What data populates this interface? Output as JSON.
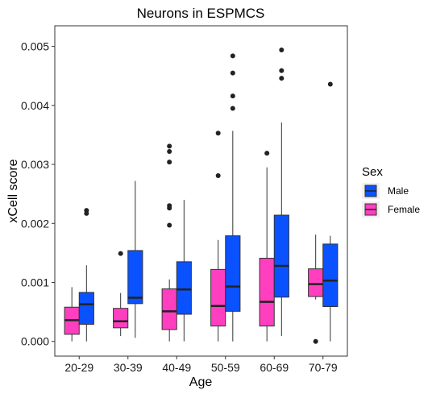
{
  "chart_data": {
    "type": "boxplot",
    "title": "Neurons in ESPMCS",
    "xlabel": "Age",
    "ylabel": "xCell score",
    "categories": [
      "20-29",
      "30-39",
      "40-49",
      "50-59",
      "60-69",
      "70-79"
    ],
    "ylim": [
      -0.00025,
      0.00535
    ],
    "yticks": [
      0,
      0.001,
      0.002,
      0.003,
      0.004,
      0.005
    ],
    "ytick_labels": [
      "0.000",
      "0.001",
      "0.002",
      "0.003",
      "0.004",
      "0.005"
    ],
    "legend": {
      "title": "Sex",
      "position": "right"
    },
    "series": [
      {
        "name": "Female",
        "color": "#ff3fc0",
        "boxes": [
          {
            "category": "20-29",
            "lower_whisker": 0.0,
            "q1": 0.00012,
            "median": 0.00036,
            "q3": 0.00058,
            "upper_whisker": 0.00092,
            "outliers": []
          },
          {
            "category": "30-39",
            "lower_whisker": 9e-05,
            "q1": 0.00023,
            "median": 0.00034,
            "q3": 0.00056,
            "upper_whisker": 0.00082,
            "outliers": [
              0.00149
            ]
          },
          {
            "category": "40-49",
            "lower_whisker": 0.0,
            "q1": 0.0002,
            "median": 0.00051,
            "q3": 0.00089,
            "upper_whisker": 0.00105,
            "outliers": [
              0.00197,
              0.00226,
              0.0023,
              0.00304,
              0.00322,
              0.00331
            ]
          },
          {
            "category": "50-59",
            "lower_whisker": 0.0,
            "q1": 0.00026,
            "median": 0.0006,
            "q3": 0.00122,
            "upper_whisker": 0.00172,
            "outliers": [
              0.00281,
              0.00353
            ]
          },
          {
            "category": "60-69",
            "lower_whisker": 0.0,
            "q1": 0.00026,
            "median": 0.00067,
            "q3": 0.00141,
            "upper_whisker": 0.00295,
            "outliers": [
              0.00319
            ]
          },
          {
            "category": "70-79",
            "lower_whisker": 0.00071,
            "q1": 0.00076,
            "median": 0.00097,
            "q3": 0.00123,
            "upper_whisker": 0.00181,
            "outliers": [
              0.0
            ]
          }
        ]
      },
      {
        "name": "Male",
        "color": "#0a52ff",
        "boxes": [
          {
            "category": "20-29",
            "lower_whisker": 0.0,
            "q1": 0.00029,
            "median": 0.00063,
            "q3": 0.00083,
            "upper_whisker": 0.00129,
            "outliers": [
              0.00217,
              0.00222
            ]
          },
          {
            "category": "30-39",
            "lower_whisker": 6e-05,
            "q1": 0.00064,
            "median": 0.00074,
            "q3": 0.00154,
            "upper_whisker": 0.00272,
            "outliers": []
          },
          {
            "category": "40-49",
            "lower_whisker": 0.0,
            "q1": 0.00046,
            "median": 0.00088,
            "q3": 0.00135,
            "upper_whisker": 0.0024,
            "outliers": []
          },
          {
            "category": "50-59",
            "lower_whisker": 0.0,
            "q1": 0.00051,
            "median": 0.00093,
            "q3": 0.00179,
            "upper_whisker": 0.00357,
            "outliers": [
              0.00395,
              0.00416,
              0.00455,
              0.00484
            ]
          },
          {
            "category": "60-69",
            "lower_whisker": 9e-05,
            "q1": 0.00075,
            "median": 0.00128,
            "q3": 0.00214,
            "upper_whisker": 0.00371,
            "outliers": [
              0.00446,
              0.00459,
              0.00494
            ]
          },
          {
            "category": "70-79",
            "lower_whisker": 0.0,
            "q1": 0.00059,
            "median": 0.00103,
            "q3": 0.00165,
            "upper_whisker": 0.00179,
            "outliers": [
              0.00436
            ]
          }
        ]
      }
    ],
    "grid": false
  }
}
